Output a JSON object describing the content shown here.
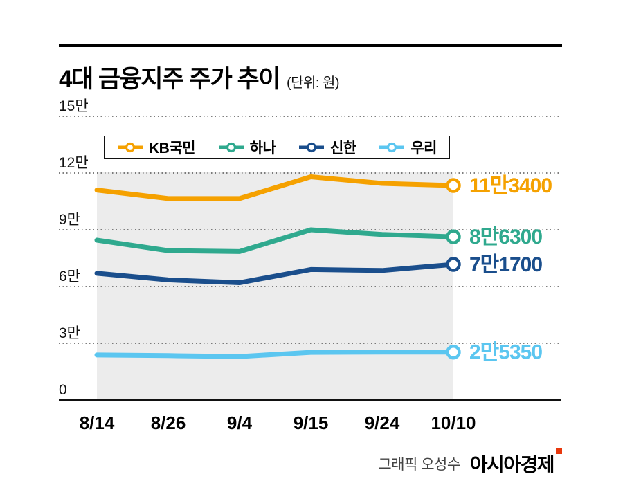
{
  "header": {
    "title": "4대 금융지주 주가 추이",
    "unit": "(단위: 원)"
  },
  "chart_data": {
    "type": "line",
    "title": "4대 금융지주 주가 추이",
    "unit": "원",
    "x": [
      "8/14",
      "8/26",
      "9/4",
      "9/15",
      "9/24",
      "10/10"
    ],
    "y_axis": {
      "min": 0,
      "max": 150000,
      "ticks": [
        {
          "label": "15만",
          "value": 150000
        },
        {
          "label": "12만",
          "value": 120000
        },
        {
          "label": "9만",
          "value": 90000
        },
        {
          "label": "6만",
          "value": 60000
        },
        {
          "label": "3만",
          "value": 30000
        },
        {
          "label": "0",
          "value": 0
        }
      ]
    },
    "series": [
      {
        "name": "KB국민",
        "color": "#F5A100",
        "values": [
          111000,
          106500,
          106500,
          118000,
          114500,
          113400
        ],
        "end_label": "11만3400"
      },
      {
        "name": "하나",
        "color": "#2FA98E",
        "values": [
          84500,
          79000,
          78500,
          90000,
          87500,
          86300
        ],
        "end_label": "8만6300"
      },
      {
        "name": "신한",
        "color": "#1A4E8C",
        "values": [
          67000,
          63500,
          62000,
          69000,
          68500,
          71700
        ],
        "end_label": "7만1700"
      },
      {
        "name": "우리",
        "color": "#5BC6F0",
        "values": [
          23800,
          23500,
          23000,
          25200,
          25300,
          25350
        ],
        "end_label": "2만5350"
      }
    ],
    "highlight_band": {
      "from_x": "8/14",
      "to_x": "10/10",
      "color": "#ECECEC"
    },
    "grid": "dotted-horizontal",
    "legend_position": "top-inside"
  },
  "footer": {
    "credit": "그래픽 오성수",
    "brand": "아시아경제",
    "brand_mark_color": "#E8380D"
  }
}
